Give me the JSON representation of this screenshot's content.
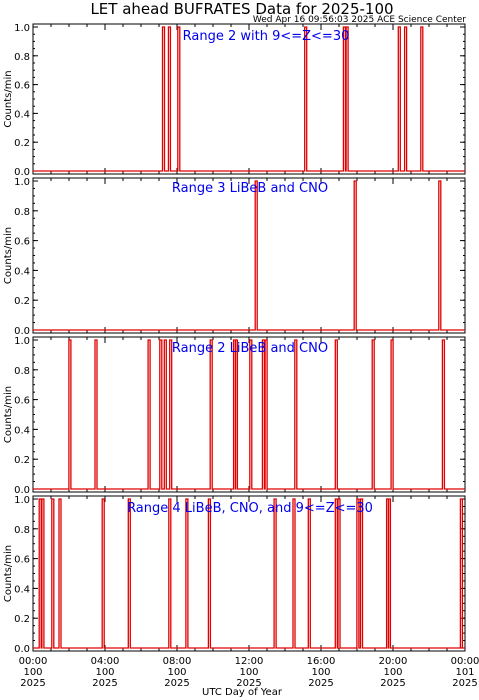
{
  "title": "LET ahead BUFRATES Data for 2025-100",
  "timestamp": "Wed Apr 16 09:56:03 2025 ACE Science Center",
  "xlabel": "UTC Day of Year",
  "x_ticks": [
    {
      "time": "00:00",
      "doy": "100",
      "year": "2025"
    },
    {
      "time": "04:00",
      "doy": "100",
      "year": "2025"
    },
    {
      "time": "08:00",
      "doy": "100",
      "year": "2025"
    },
    {
      "time": "12:00",
      "doy": "100",
      "year": "2025"
    },
    {
      "time": "16:00",
      "doy": "100",
      "year": "2025"
    },
    {
      "time": "20:00",
      "doy": "100",
      "year": "2025"
    },
    {
      "time": "00:00",
      "doy": "101",
      "year": "2025"
    }
  ],
  "colors": {
    "data": "#e00000",
    "label": "#0000ee",
    "axes": "#000000"
  },
  "chart_data": [
    {
      "type": "line",
      "label": "Range 2 with 9<=Z<=30",
      "ylabel": "Counts/min",
      "ylim": [
        0,
        1.0
      ],
      "yticks": [
        "0.0",
        "0.2",
        "0.4",
        "0.6",
        "0.8",
        "1.0"
      ],
      "xlim_hours": [
        0,
        24
      ],
      "spike_hours": [
        7.25,
        7.58,
        8.1,
        15.15,
        17.3,
        17.45,
        20.35,
        20.7,
        21.6
      ]
    },
    {
      "type": "line",
      "label": "Range 3 LiBeB and CNO",
      "ylabel": "Counts/min",
      "ylim": [
        0,
        1.0
      ],
      "yticks": [
        "0.0",
        "0.2",
        "0.4",
        "0.6",
        "0.8",
        "1.0"
      ],
      "xlim_hours": [
        0,
        24
      ],
      "spike_hours": [
        12.4,
        17.9,
        22.6
      ]
    },
    {
      "type": "line",
      "label": "Range 2 LiBeB and CNO",
      "ylabel": "Counts/min",
      "ylim": [
        0,
        1.0
      ],
      "yticks": [
        "0.0",
        "0.2",
        "0.4",
        "0.6",
        "0.8",
        "1.0"
      ],
      "xlim_hours": [
        0,
        24
      ],
      "spike_hours": [
        2.05,
        3.5,
        6.45,
        7.1,
        7.35,
        7.65,
        9.9,
        11.2,
        11.3,
        12.1,
        12.8,
        12.95,
        14.6,
        16.85,
        18.9,
        19.95,
        22.8
      ]
    },
    {
      "type": "line",
      "label": "Range 4 LiBeB, CNO, and 9<=Z<=30",
      "ylabel": "Counts/min",
      "ylim": [
        0,
        1.0
      ],
      "yticks": [
        "0.0",
        "0.2",
        "0.4",
        "0.6",
        "0.8",
        "1.0"
      ],
      "xlim_hours": [
        0,
        24
      ],
      "spike_hours": [
        0.4,
        0.55,
        1.1,
        1.5,
        3.9,
        5.35,
        7.6,
        8.55,
        9.8,
        13.45,
        14.5,
        15.35,
        16.85,
        17.0,
        18.05,
        18.25,
        19.7,
        19.8,
        23.8
      ]
    }
  ]
}
